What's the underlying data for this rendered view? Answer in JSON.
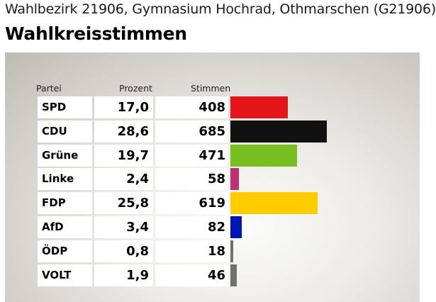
{
  "header": {
    "subtitle": "Wahlbezirk 21906, Gymnasium Hochrad, Othmarschen (G21906)",
    "title": "Wahlkreisstimmen"
  },
  "columns": {
    "party": "Partei",
    "percent": "Prozent",
    "votes": "Stimmen"
  },
  "chart_data": {
    "type": "bar",
    "orientation": "horizontal",
    "categories": [
      "SPD",
      "CDU",
      "Grüne",
      "Linke",
      "FDP",
      "AfD",
      "ÖDP",
      "VOLT"
    ],
    "rows": [
      {
        "party": "SPD",
        "percent": "17,0",
        "votes": "408",
        "value": 408,
        "color": "#e3151b"
      },
      {
        "party": "CDU",
        "percent": "28,6",
        "votes": "685",
        "value": 685,
        "color": "#111111"
      },
      {
        "party": "Grüne",
        "percent": "19,7",
        "votes": "471",
        "value": 471,
        "color": "#78be1e"
      },
      {
        "party": "Linke",
        "percent": "2,4",
        "votes": "58",
        "value": 58,
        "color": "#be3075"
      },
      {
        "party": "FDP",
        "percent": "25,8",
        "votes": "619",
        "value": 619,
        "color": "#ffcc00"
      },
      {
        "party": "AfD",
        "percent": "3,4",
        "votes": "82",
        "value": 82,
        "color": "#0013b5"
      },
      {
        "party": "ÖDP",
        "percent": "0,8",
        "votes": "18",
        "value": 18,
        "color": "#707070"
      },
      {
        "party": "VOLT",
        "percent": "1,9",
        "votes": "46",
        "value": 46,
        "color": "#707070"
      }
    ]
  }
}
